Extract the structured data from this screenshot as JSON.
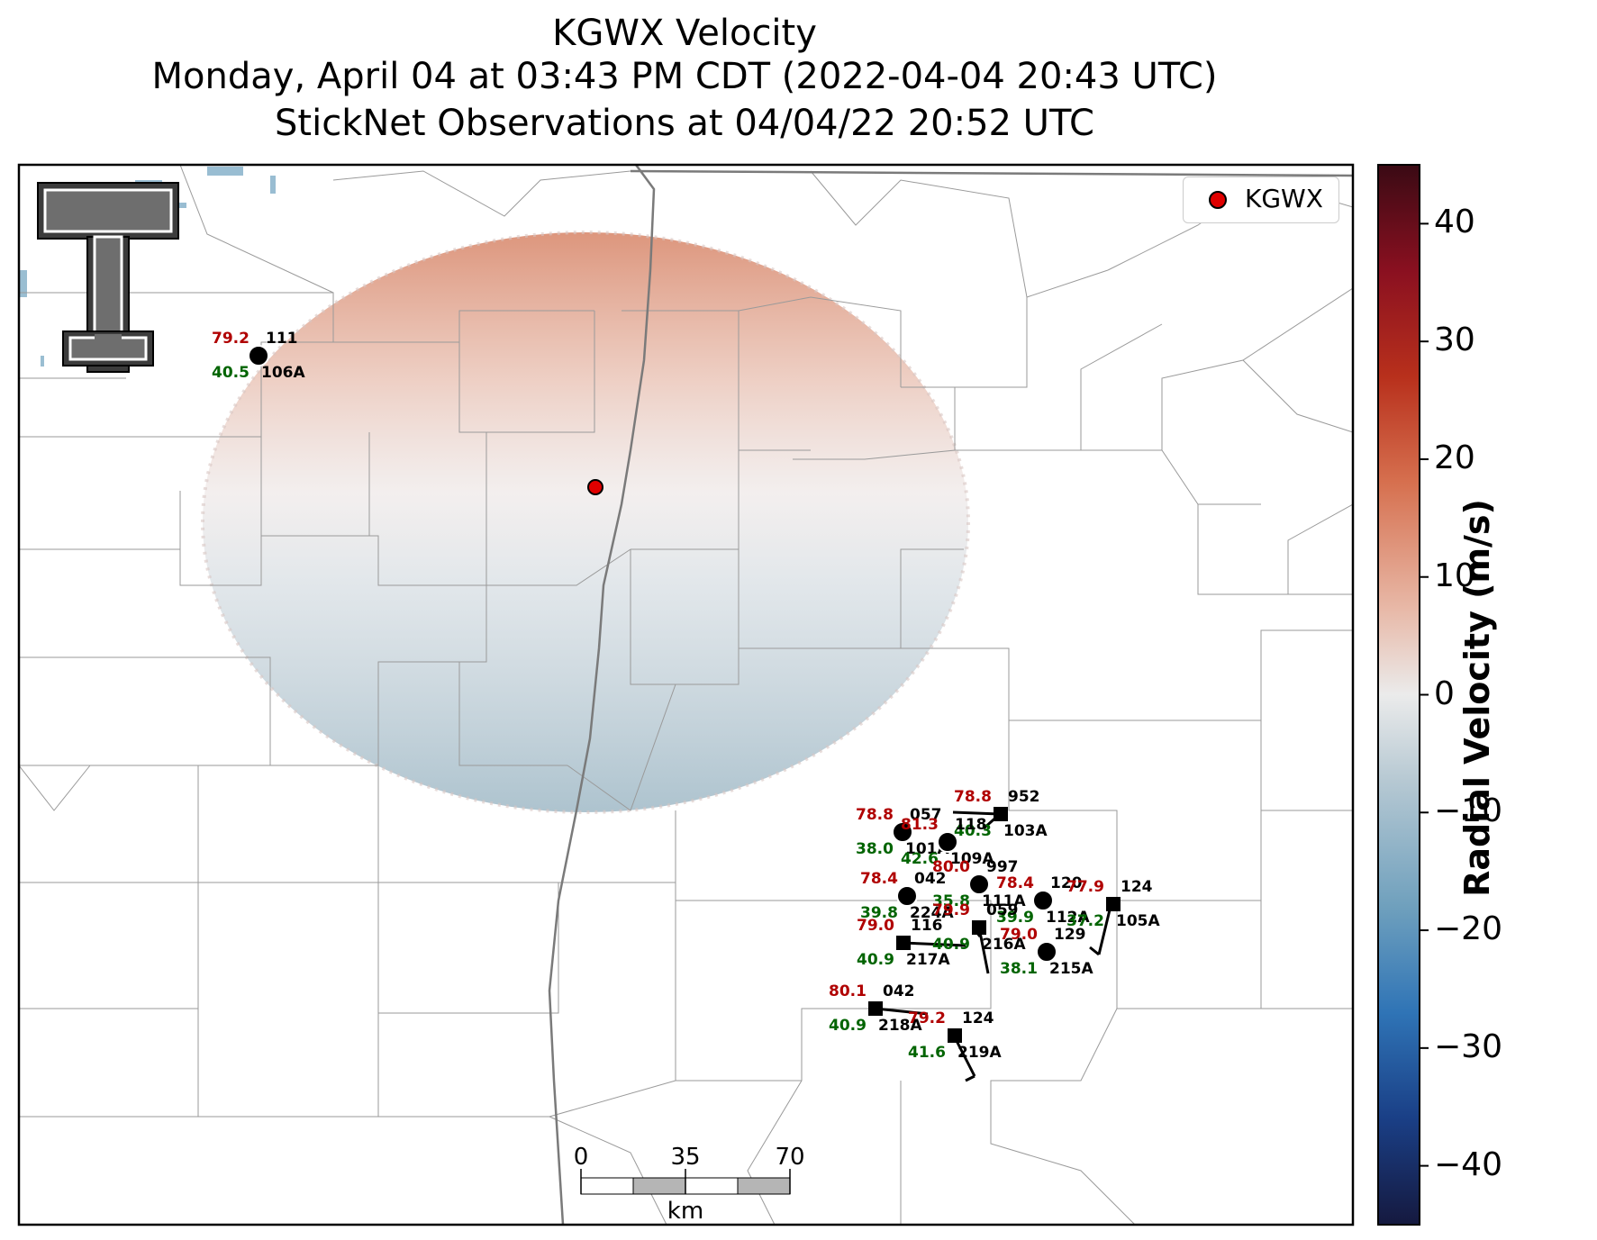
{
  "title": {
    "line1": "KGWX Velocity",
    "line2": "Monday, April 04 at 03:43 PM CDT (2022-04-04 20:43 UTC)",
    "line3": "StickNet Observations at 04/04/22 20:52 UTC"
  },
  "legend": {
    "label": "KGWX",
    "marker_color": "#e00000"
  },
  "colorbar": {
    "title": "Radial Velocity (m/s)",
    "ticks": [
      "40",
      "30",
      "20",
      "10",
      "0",
      "−10",
      "−20",
      "−30",
      "−40"
    ],
    "range": [
      -45,
      45
    ]
  },
  "scalebar": {
    "labels": [
      "0",
      "35",
      "70"
    ],
    "unit": "km"
  },
  "logo_icon": "texas-tech-double-t-logo",
  "stations": [
    {
      "temp": "79.2",
      "dew": "40.5",
      "id": "111",
      "probe": "106A",
      "type": "circle"
    },
    {
      "temp": "78.8",
      "dew": "38.0",
      "id": "057",
      "probe": "101A",
      "type": "circle"
    },
    {
      "temp": "78.8",
      "dew": "40.3",
      "id": "952",
      "probe": "103A",
      "type": "square"
    },
    {
      "temp": "81.3",
      "dew": "42.6",
      "id": "118",
      "probe": "109A",
      "type": "circle"
    },
    {
      "temp": "78.4",
      "dew": "39.8",
      "id": "042",
      "probe": "224A",
      "type": "circle"
    },
    {
      "temp": "80.0",
      "dew": "35.8",
      "id": "997",
      "probe": "111A",
      "type": "circle"
    },
    {
      "temp": "78.4",
      "dew": "39.9",
      "id": "120",
      "probe": "112A",
      "type": "circle"
    },
    {
      "temp": "77.9",
      "dew": "37.2",
      "id": "124",
      "probe": "105A",
      "type": "square"
    },
    {
      "temp": "79.0",
      "dew": "40.9",
      "id": "116",
      "probe": "217A",
      "type": "square"
    },
    {
      "temp": "79.9",
      "dew": "40.9",
      "id": "059",
      "probe": "216A",
      "type": "square"
    },
    {
      "temp": "79.0",
      "dew": "38.1",
      "id": "129",
      "probe": "215A",
      "type": "circle"
    },
    {
      "temp": "80.1",
      "dew": "40.9",
      "id": "042",
      "probe": "218A",
      "type": "square"
    },
    {
      "temp": "79.2",
      "dew": "41.6",
      "id": "124",
      "probe": "219A",
      "type": "square"
    }
  ]
}
